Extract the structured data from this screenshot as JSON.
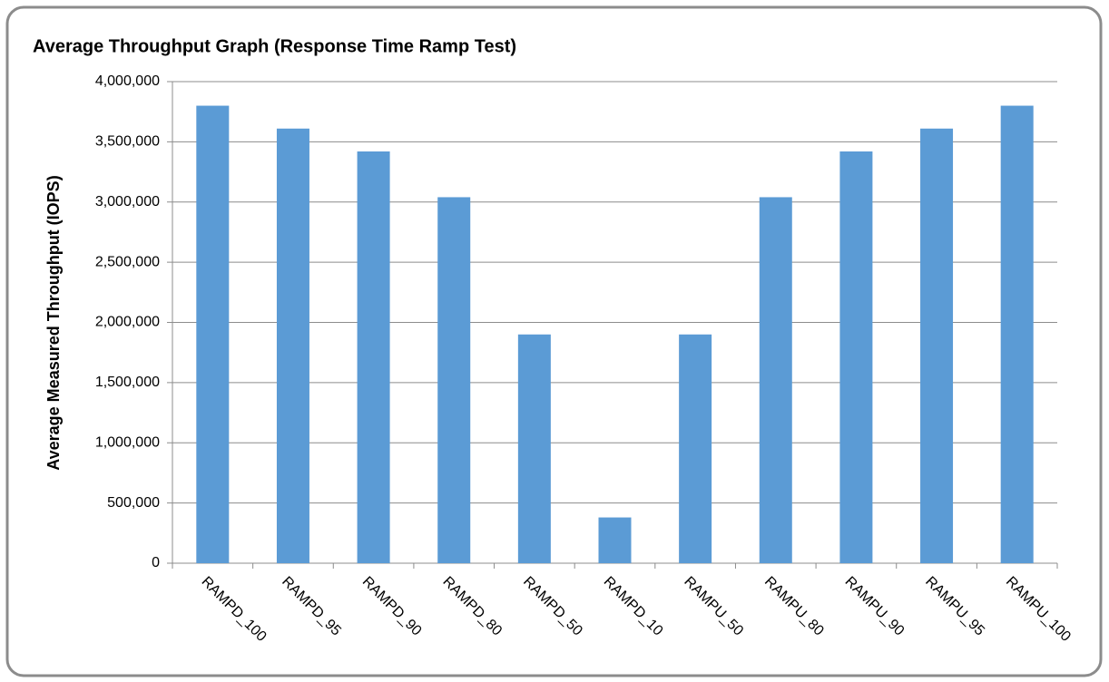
{
  "chart_data": {
    "type": "bar",
    "title": "Average Throughput Graph (Response Time Ramp Test)",
    "y_label": "Average Measured Throughput (IOPS)",
    "categories": [
      "RAMPD_100",
      "RAMPD_95",
      "RAMPD_90",
      "RAMPD_80",
      "RAMPD_50",
      "RAMPD_10",
      "RAMPU_50",
      "RAMPU_80",
      "RAMPU_90",
      "RAMPU_95",
      "RAMPU_100"
    ],
    "values": [
      3800000,
      3610000,
      3420000,
      3040000,
      1900000,
      380000,
      1900000,
      3040000,
      3420000,
      3610000,
      3800000
    ],
    "color": "#5b9bd5",
    "ylim": [
      0,
      4000000
    ],
    "yticks": [
      0,
      {
        "value": 500000,
        "label": "500,000"
      },
      {
        "value": 1000000,
        "label": "1,000,000"
      },
      {
        "value": 1500000,
        "label": "1,500,000"
      },
      {
        "value": 2000000,
        "label": "2,000,000"
      },
      {
        "value": 2500000,
        "label": "2,500,000"
      },
      {
        "value": 3000000,
        "label": "3,000,000"
      },
      {
        "value": 3500000,
        "label": "3,500,000"
      },
      {
        "value": 4000000,
        "label": "4,000,000"
      }
    ],
    "grid": true
  }
}
